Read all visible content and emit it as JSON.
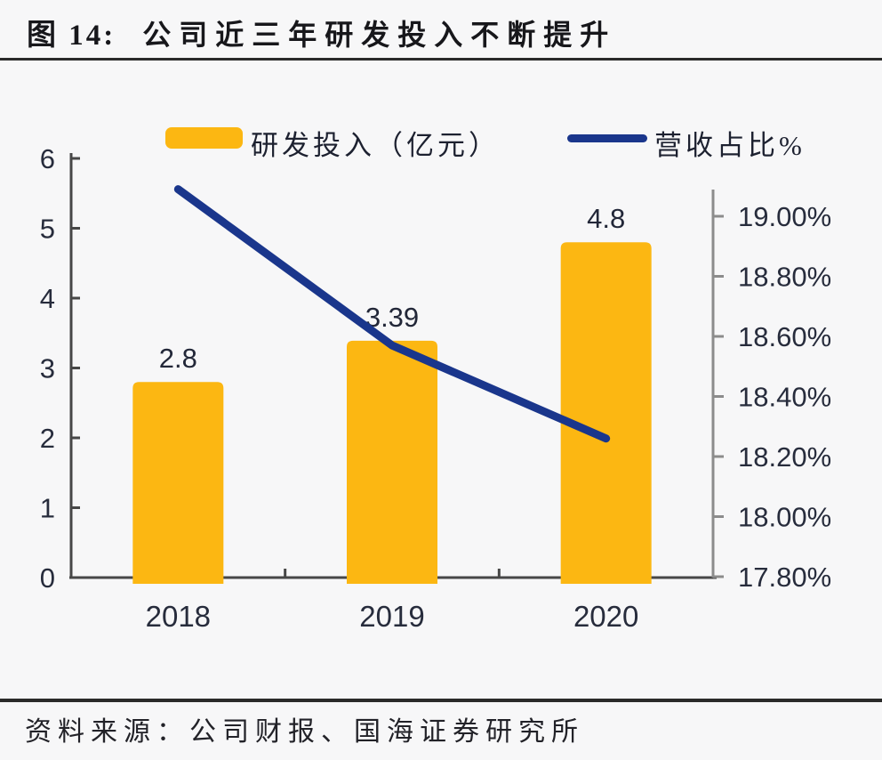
{
  "header": {
    "figure_label": "图 14:",
    "title": "公司近三年研发投入不断提升"
  },
  "legend": {
    "bar_label": "研发投入（亿元）",
    "line_label": "营收占比%"
  },
  "chart_data": {
    "type": "bar",
    "subtype": "combo-bar-line-dual-axis",
    "categories": [
      "2018",
      "2019",
      "2020"
    ],
    "series": [
      {
        "name": "研发投入（亿元）",
        "type": "bar",
        "axis": "left",
        "values": [
          2.8,
          3.39,
          4.8
        ],
        "data_labels": [
          "2.8",
          "3.39",
          "4.8"
        ]
      },
      {
        "name": "营收占比%",
        "type": "line",
        "axis": "right",
        "values": [
          19.09,
          18.57,
          18.26
        ]
      }
    ],
    "left_axis": {
      "min": 0,
      "max": 6,
      "step": 1,
      "ticks": [
        "0",
        "1",
        "2",
        "3",
        "4",
        "5",
        "6"
      ]
    },
    "right_axis": {
      "min": 17.8,
      "max": 19.0,
      "step": 0.2,
      "ticks": [
        "17.80%",
        "18.00%",
        "18.20%",
        "18.40%",
        "18.60%",
        "18.80%",
        "19.00%"
      ]
    },
    "grid": false,
    "legend_position": "top"
  },
  "colors": {
    "bar": "#fcb712",
    "line": "#1a368c",
    "axis_dark": "#474747",
    "axis_light": "#8c8c8c",
    "label": "#272c3c",
    "title": "#17171b",
    "rule": "#2a2a2a",
    "source_text": "#222228",
    "background": "#f7f7f8"
  },
  "footer": {
    "source": "资料来源：公司财报、国海证券研究所"
  }
}
